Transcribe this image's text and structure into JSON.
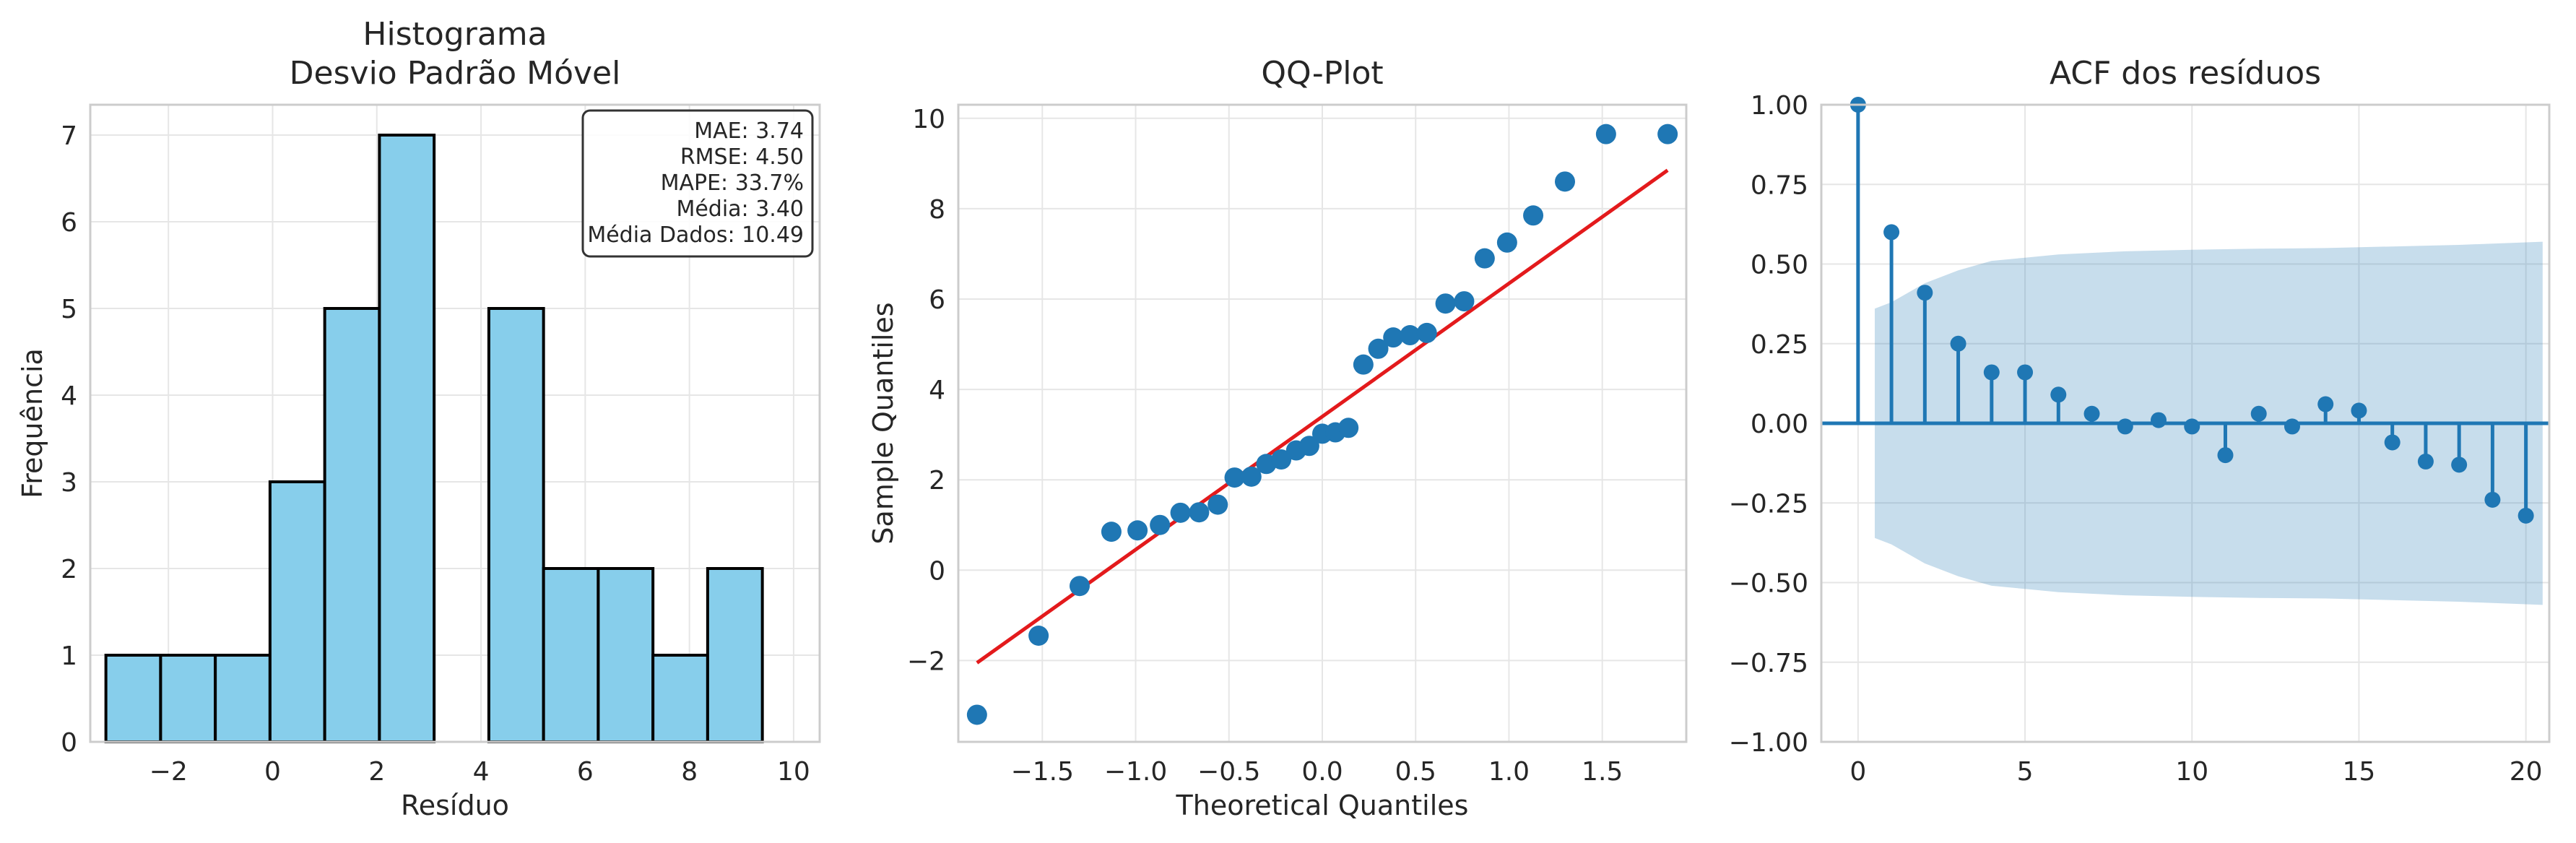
{
  "chart_data": [
    {
      "type": "bar",
      "title": "Histograma\nDesvio Padrão Móvel",
      "xlabel": "Resíduo",
      "ylabel": "Frequência",
      "xlim": [
        -3.5,
        10.5
      ],
      "ylim": [
        0,
        7.35
      ],
      "xticks": [
        -2,
        0,
        2,
        4,
        6,
        8,
        10
      ],
      "yticks": [
        0,
        1,
        2,
        3,
        4,
        5,
        6,
        7
      ],
      "bin_edges": [
        -3.2,
        -2.15,
        -1.1,
        -0.05,
        1.0,
        2.05,
        3.1,
        4.15,
        5.2,
        6.25,
        7.3,
        8.35,
        9.4
      ],
      "bin_edges_note": "",
      "bins": [
        {
          "x0": -3.2,
          "x1": -2.15,
          "count": 1
        },
        {
          "x0": -2.15,
          "x1": -1.1,
          "count": 1
        },
        {
          "x0": -1.1,
          "x1": -0.05,
          "count": 1
        },
        {
          "x0": -0.05,
          "x1": 1.0,
          "count": 3
        },
        {
          "x0": 1.0,
          "x1": 2.05,
          "count": 5
        },
        {
          "x0": 2.05,
          "x1": 3.1,
          "count": 7
        },
        {
          "x0": 3.1,
          "x1": 4.15,
          "count": 0
        },
        {
          "x0": 4.15,
          "x1": 5.2,
          "count": 5
        },
        {
          "x0": 5.2,
          "x1": 6.25,
          "count": 2
        },
        {
          "x0": 6.25,
          "x1": 7.3,
          "count": 2
        },
        {
          "x0": 7.3,
          "x1": 8.35,
          "count": 1
        },
        {
          "x0": 8.35,
          "x1": 9.4,
          "count": 2
        }
      ],
      "stats": [
        "MAE: 3.74",
        "RMSE: 4.50",
        "MAPE: 33.7%",
        "Média: 3.40",
        "Média Dados: 10.49"
      ],
      "stats_placement": "top-right",
      "grid": true,
      "colors": {
        "bar_fill": "#87CEEB",
        "bar_edge": "#000000"
      }
    },
    {
      "type": "scatter",
      "title": "QQ-Plot",
      "xlabel": "Theoretical Quantiles",
      "ylabel": "Sample Quantiles",
      "xlim": [
        -1.95,
        1.95
      ],
      "ylim": [
        -3.8,
        10.3
      ],
      "xticks": [
        -1.5,
        -1.0,
        -0.5,
        0.0,
        0.5,
        1.0,
        1.5
      ],
      "yticks": [
        -2,
        0,
        2,
        4,
        6,
        8,
        10
      ],
      "x": [
        -1.85,
        -1.52,
        -1.3,
        -1.13,
        -0.99,
        -0.87,
        -0.76,
        -0.66,
        -0.56,
        -0.47,
        -0.38,
        -0.3,
        -0.22,
        -0.14,
        -0.07,
        0.0,
        0.07,
        0.14,
        0.22,
        0.3,
        0.38,
        0.47,
        0.56,
        0.66,
        0.76,
        0.87,
        0.99,
        1.13,
        1.3,
        1.52,
        1.85
      ],
      "y": [
        -3.2,
        -1.45,
        -0.35,
        0.85,
        0.88,
        1.0,
        1.27,
        1.28,
        1.45,
        2.05,
        2.07,
        2.35,
        2.45,
        2.65,
        2.75,
        3.02,
        3.05,
        3.15,
        4.55,
        4.9,
        5.15,
        5.2,
        5.25,
        5.9,
        5.95,
        6.9,
        7.25,
        7.85,
        8.6,
        9.65,
        9.65
      ],
      "fit_line": {
        "x": [
          -1.85,
          1.85
        ],
        "y": [
          -2.05,
          8.85
        ]
      },
      "grid": true,
      "colors": {
        "points": "#1f77b4",
        "line": "#e31a1c"
      }
    },
    {
      "type": "stem",
      "title": "ACF dos resíduos",
      "xlim": [
        -1.1,
        20.7
      ],
      "ylim": [
        -1.0,
        1.0
      ],
      "xticks": [
        0,
        5,
        10,
        15,
        20
      ],
      "yticks": [
        -1.0,
        -0.75,
        -0.5,
        -0.25,
        0.0,
        0.25,
        0.5,
        0.75,
        1.0
      ],
      "ytick_labels": [
        "−1.00",
        "−0.75",
        "−0.50",
        "−0.25",
        "0.00",
        "0.25",
        "0.50",
        "0.75",
        "1.00"
      ],
      "lags": [
        0,
        1,
        2,
        3,
        4,
        5,
        6,
        7,
        8,
        9,
        10,
        11,
        12,
        13,
        14,
        15,
        16,
        17,
        18,
        19,
        20
      ],
      "values": [
        1.0,
        0.6,
        0.41,
        0.25,
        0.16,
        0.16,
        0.09,
        0.03,
        -0.01,
        0.01,
        -0.01,
        -0.1,
        0.03,
        -0.01,
        0.06,
        0.04,
        -0.06,
        -0.12,
        -0.13,
        -0.24,
        -0.29
      ],
      "confint_x": [
        0.5,
        1,
        2,
        3,
        4,
        5,
        6,
        8,
        10,
        12,
        14,
        16,
        18,
        20.5
      ],
      "confint_upper": [
        0.36,
        0.38,
        0.44,
        0.48,
        0.51,
        0.52,
        0.53,
        0.54,
        0.545,
        0.548,
        0.55,
        0.555,
        0.56,
        0.57
      ],
      "confint_lower": [
        -0.36,
        -0.38,
        -0.44,
        -0.48,
        -0.51,
        -0.52,
        -0.53,
        -0.54,
        -0.545,
        -0.548,
        -0.55,
        -0.555,
        -0.56,
        -0.57
      ],
      "grid": true,
      "colors": {
        "stem": "#1f77b4",
        "band": "#1f77b4",
        "baseline": "#1f77b4"
      }
    }
  ]
}
